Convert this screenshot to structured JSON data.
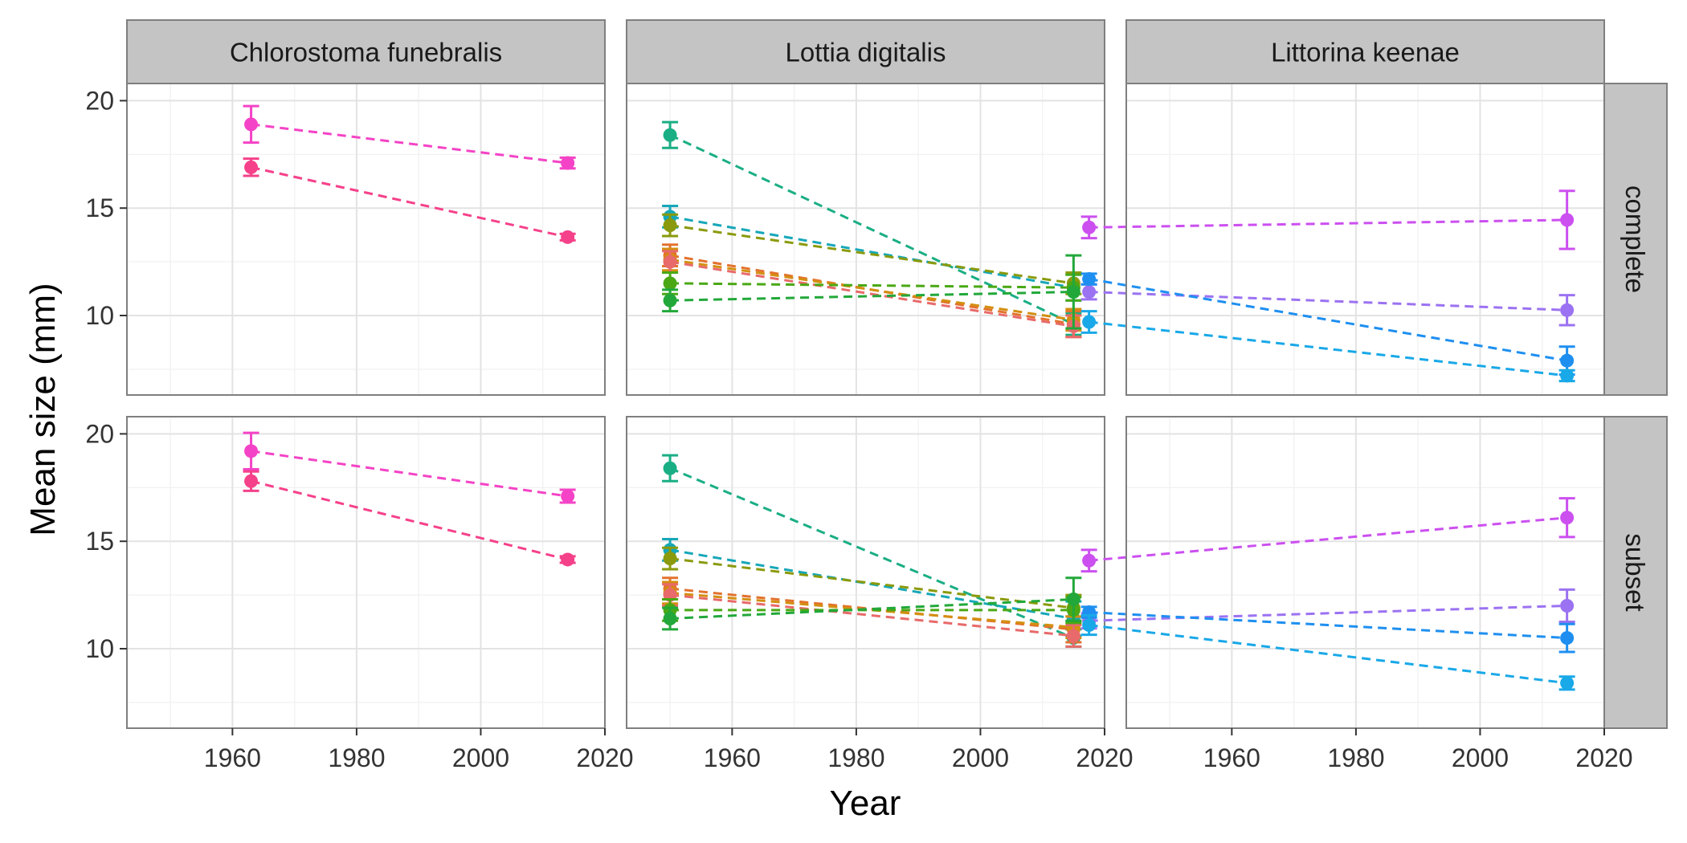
{
  "chart_data": {
    "type": "line",
    "xlabel": "Year",
    "ylabel": "Mean size (mm)",
    "xlim": [
      1943,
      2020
    ],
    "ylim": [
      6.3,
      20.8
    ],
    "x_ticks": [
      1960,
      1980,
      2000,
      2020
    ],
    "y_ticks": [
      10,
      15,
      20
    ],
    "grid": true,
    "legend": "none",
    "columns": [
      "Chlorostoma funebralis",
      "Lottia digitalis",
      "Littorina keenae"
    ],
    "rows": [
      "complete",
      "subset"
    ],
    "panels": [
      {
        "column": "Chlorostoma funebralis",
        "row": "complete",
        "series": [
          {
            "color": "#f443c6",
            "x": [
              1963,
              2014
            ],
            "y": [
              18.9,
              17.1
            ],
            "err": [
              0.85,
              0.25
            ]
          },
          {
            "color": "#f5418a",
            "x": [
              1963,
              2014
            ],
            "y": [
              16.9,
              13.65
            ],
            "err": [
              0.4,
              0.15
            ]
          }
        ]
      },
      {
        "column": "Lottia digitalis",
        "row": "complete",
        "series": [
          {
            "color": "#1aae84",
            "x": [
              1950,
              2015
            ],
            "y": [
              18.4,
              9.6
            ],
            "err": [
              0.6,
              0.5
            ]
          },
          {
            "color": "#16a7b8",
            "x": [
              1950,
              2015
            ],
            "y": [
              14.6,
              11.3
            ],
            "err": [
              0.5,
              0.6
            ]
          },
          {
            "color": "#8a9a0c",
            "x": [
              1950,
              2015
            ],
            "y": [
              14.2,
              11.5
            ],
            "err": [
              0.5,
              0.5
            ]
          },
          {
            "color": "#e3722d",
            "x": [
              1950,
              2015
            ],
            "y": [
              12.8,
              9.6
            ],
            "err": [
              0.5,
              0.6
            ]
          },
          {
            "color": "#d38f10",
            "x": [
              1950,
              2015
            ],
            "y": [
              12.6,
              9.8
            ],
            "err": [
              0.5,
              0.5
            ]
          },
          {
            "color": "#e86a6a",
            "x": [
              1950,
              2015
            ],
            "y": [
              12.5,
              9.5
            ],
            "err": [
              0.5,
              0.5
            ]
          },
          {
            "color": "#4aa815",
            "x": [
              1950,
              2015
            ],
            "y": [
              11.5,
              11.3
            ],
            "err": [
              0.5,
              0.6
            ]
          },
          {
            "color": "#22a83a",
            "x": [
              1950,
              2015
            ],
            "y": [
              10.7,
              11.1
            ],
            "err": [
              0.5,
              1.7
            ]
          }
        ]
      },
      {
        "column": "Littorina keenae",
        "row": "complete",
        "series": [
          {
            "color": "#cc4ff0",
            "x": [
              1937,
              2014
            ],
            "y": [
              14.1,
              14.45
            ],
            "err": [
              0.5,
              1.35
            ]
          },
          {
            "color": "#9b72f2",
            "x": [
              1937,
              2014
            ],
            "y": [
              11.1,
              10.25
            ],
            "err": [
              0.35,
              0.7
            ]
          },
          {
            "color": "#1e8ff0",
            "x": [
              1937,
              2014
            ],
            "y": [
              11.7,
              7.9
            ],
            "err": [
              0.25,
              0.65
            ]
          },
          {
            "color": "#19a8e8",
            "x": [
              1937,
              2014
            ],
            "y": [
              9.7,
              7.2
            ],
            "err": [
              0.5,
              0.25
            ]
          }
        ]
      },
      {
        "column": "Chlorostoma funebralis",
        "row": "subset",
        "series": [
          {
            "color": "#f443c6",
            "x": [
              1963,
              2014
            ],
            "y": [
              19.2,
              17.1
            ],
            "err": [
              0.85,
              0.3
            ]
          },
          {
            "color": "#f5418a",
            "x": [
              1963,
              2014
            ],
            "y": [
              17.8,
              14.15
            ],
            "err": [
              0.45,
              0.15
            ]
          }
        ]
      },
      {
        "column": "Lottia digitalis",
        "row": "subset",
        "series": [
          {
            "color": "#1aae84",
            "x": [
              1950,
              2015
            ],
            "y": [
              18.4,
              10.5
            ],
            "err": [
              0.6,
              0.4
            ]
          },
          {
            "color": "#16a7b8",
            "x": [
              1950,
              2015
            ],
            "y": [
              14.6,
              11.4
            ],
            "err": [
              0.5,
              0.8
            ]
          },
          {
            "color": "#8a9a0c",
            "x": [
              1950,
              2015
            ],
            "y": [
              14.2,
              11.9
            ],
            "err": [
              0.5,
              0.6
            ]
          },
          {
            "color": "#e3722d",
            "x": [
              1950,
              2015
            ],
            "y": [
              12.8,
              10.9
            ],
            "err": [
              0.5,
              0.6
            ]
          },
          {
            "color": "#d38f10",
            "x": [
              1950,
              2015
            ],
            "y": [
              12.6,
              11.0
            ],
            "err": [
              0.5,
              0.5
            ]
          },
          {
            "color": "#e86a6a",
            "x": [
              1950,
              2015
            ],
            "y": [
              12.5,
              10.6
            ],
            "err": [
              0.5,
              0.5
            ]
          },
          {
            "color": "#4aa815",
            "x": [
              1950,
              2015
            ],
            "y": [
              11.8,
              11.8
            ],
            "err": [
              0.5,
              0.6
            ]
          },
          {
            "color": "#22a83a",
            "x": [
              1950,
              2015
            ],
            "y": [
              11.4,
              12.3
            ],
            "err": [
              0.5,
              1.0
            ]
          }
        ]
      },
      {
        "column": "Littorina keenae",
        "row": "subset",
        "series": [
          {
            "color": "#cc4ff0",
            "x": [
              1937,
              2014
            ],
            "y": [
              14.1,
              16.1
            ],
            "err": [
              0.5,
              0.9
            ]
          },
          {
            "color": "#9b72f2",
            "x": [
              1937,
              2014
            ],
            "y": [
              11.3,
              12.0
            ],
            "err": [
              0.35,
              0.75
            ]
          },
          {
            "color": "#1e8ff0",
            "x": [
              1937,
              2014
            ],
            "y": [
              11.7,
              10.5
            ],
            "err": [
              0.25,
              0.65
            ]
          },
          {
            "color": "#19a8e8",
            "x": [
              1937,
              2014
            ],
            "y": [
              11.1,
              8.4
            ],
            "err": [
              0.45,
              0.3
            ]
          }
        ]
      }
    ]
  }
}
